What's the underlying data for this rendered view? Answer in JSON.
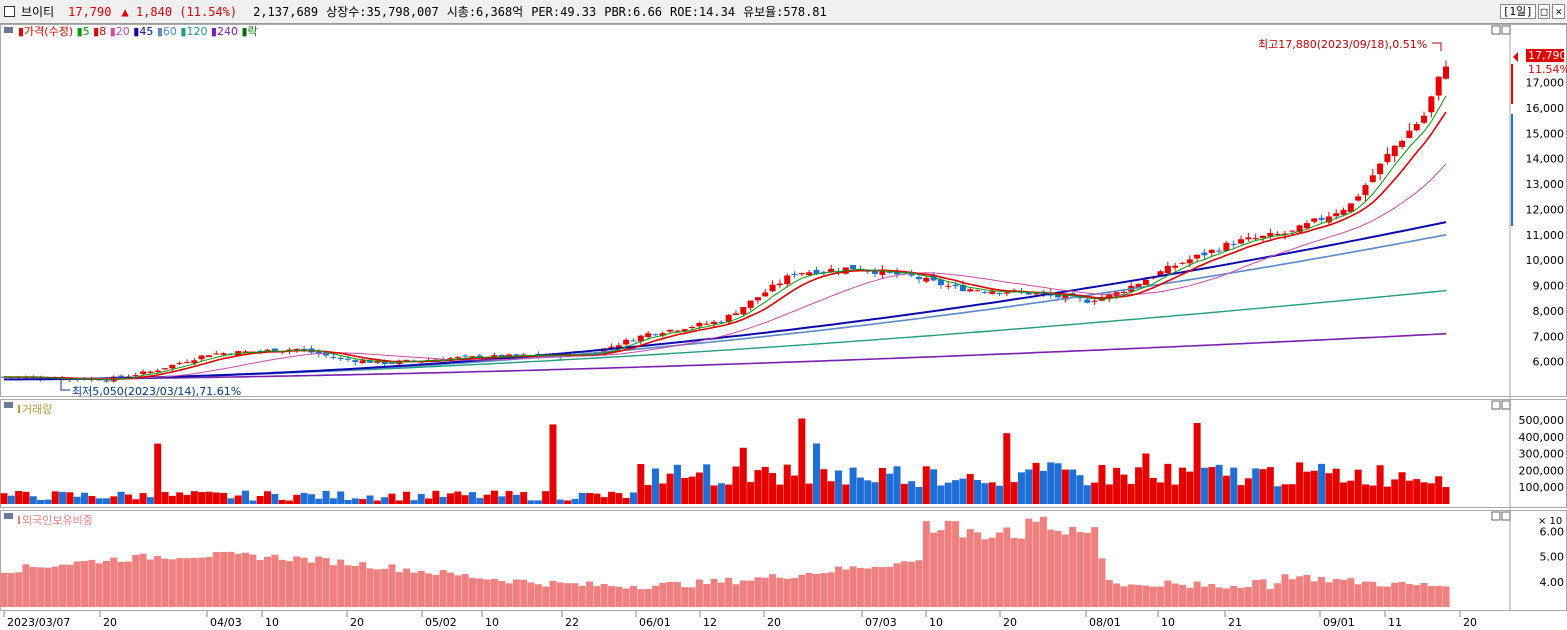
{
  "header": {
    "stock_name": "브이티",
    "price": "17,790",
    "change_symbol": "▲",
    "change": "1,840 (11.54%)",
    "volume": "2,137,689",
    "listed_shares": "상장수:35,798,007",
    "market_cap": "시총:6,368억",
    "per": "PER:49.33",
    "pbr": "PBR:6.66",
    "roe": "ROE:14.34",
    "float_ratio": "유보율:578.81",
    "period_button": "[1일]",
    "max_button": "□",
    "close_button": "×"
  },
  "colors": {
    "up": "#e60000",
    "down": "#1f6fd6",
    "ma5": "#0a9b0a",
    "ma8": "#e00000",
    "ma20": "#d04aa8",
    "ma45": "#0a0ab0",
    "ma60": "#5a8ac8",
    "ma120": "#1fa07a",
    "ma240": "#7a1fb0",
    "foreign": "#f08080"
  },
  "price_panel": {
    "legend": [
      {
        "label": "가격(수정)",
        "color": "#e60000"
      },
      {
        "label": "5",
        "color": "#0a9b0a"
      },
      {
        "label": "8",
        "color": "#e00000"
      },
      {
        "label": "20",
        "color": "#d04aa8"
      },
      {
        "label": "45",
        "color": "#0a0ab0"
      },
      {
        "label": "60",
        "color": "#5a8ac8"
      },
      {
        "label": "120",
        "color": "#1fa07a"
      },
      {
        "label": "240",
        "color": "#7a1fb0"
      },
      {
        "label": "락",
        "color": "#0a6b0a"
      }
    ],
    "high_label": "최고17,880(2023/09/18),0.51%",
    "low_label": "최저5,050(2023/03/14),71.61%",
    "current_price_tag": "17,790",
    "current_change_tag": "11.54%"
  },
  "volume_panel": {
    "legend": "거래량",
    "multiplier": "× 10"
  },
  "foreign_panel": {
    "legend": "외국인보유비중"
  },
  "chart_data": [
    {
      "type": "candlestick",
      "title": "가격(수정)",
      "ylim": [
        5000,
        18500
      ],
      "y_ticks": [
        "6,000",
        "7,000",
        "8,000",
        "9,000",
        "10,000",
        "11,000",
        "12,000",
        "13,000",
        "14,000",
        "15,000",
        "16,000",
        "17,000"
      ],
      "x_labels": [
        "2023/03/07",
        "20",
        "04/03",
        "10",
        "20",
        "05/02",
        "10",
        "22",
        "06/01",
        "12",
        "20",
        "07/03",
        "10",
        "20",
        "08/01",
        "10",
        "21",
        "09/01",
        "11",
        "20"
      ],
      "ma_end_values": {
        "ma5": 16300,
        "ma8": 16000,
        "ma20": 14100,
        "ma45": 11500,
        "ma60": 11000,
        "ma120": 8800,
        "ma240": 7100
      }
    },
    {
      "type": "bar",
      "title": "거래량",
      "y_ticks": [
        "100,000",
        "200,000",
        "300,000",
        "400,000",
        "500,000"
      ],
      "unit_multiplier": 10,
      "ylim": [
        0,
        560000
      ]
    },
    {
      "type": "bar",
      "title": "외국인보유비중",
      "y_ticks": [
        "4.00",
        "5.00",
        "6.00"
      ],
      "ylim": [
        3.0,
        7.0
      ]
    }
  ]
}
